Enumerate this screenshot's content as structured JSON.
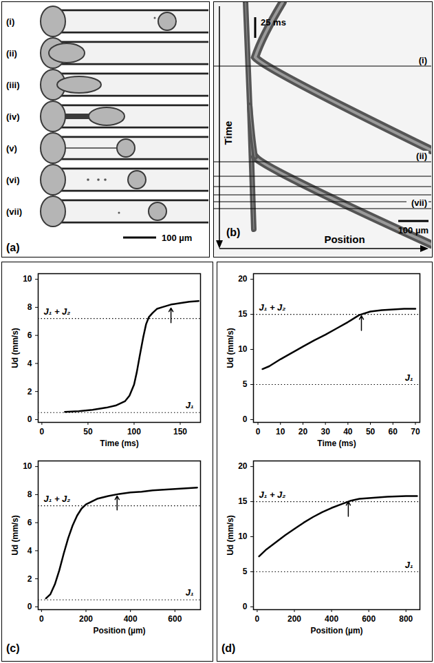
{
  "panels": {
    "a": {
      "label": "(a)",
      "rows": [
        "(i)",
        "(ii)",
        "(iii)",
        "(iv)",
        "(v)",
        "(vi)",
        "(vii)"
      ],
      "scale_bar": "100 µm"
    },
    "b": {
      "label": "(b)",
      "time_bar": "25 ms",
      "y_label": "Time",
      "x_label": "Position",
      "scale_bar": "100 µm",
      "marked_frames": [
        "(i)",
        "(ii)",
        "(vii)"
      ]
    },
    "c": {
      "label": "(c)"
    },
    "d": {
      "label": "(d)"
    }
  },
  "chart_data": [
    {
      "type": "line",
      "panel": "c",
      "x_label": "Time (ms)",
      "y_label": "Ud (mm/s)",
      "color": "#000000",
      "x": [
        25,
        40,
        55,
        70,
        80,
        90,
        95,
        100,
        103,
        106,
        110,
        113,
        116,
        120,
        125,
        130,
        140,
        150,
        160,
        170
      ],
      "values": [
        0.55,
        0.6,
        0.7,
        0.85,
        1.0,
        1.3,
        1.7,
        2.5,
        3.4,
        4.5,
        5.9,
        6.8,
        7.3,
        7.6,
        7.9,
        8.0,
        8.2,
        8.3,
        8.4,
        8.45
      ],
      "xlim": [
        -4,
        172
      ],
      "xticks": [
        0,
        50,
        100,
        150
      ],
      "ylim": [
        -0.2,
        10.4
      ],
      "yticks": [
        0,
        2,
        4,
        6,
        8,
        10
      ],
      "reference_lines": [
        {
          "value": 7.2,
          "label": "J₁ + J₂"
        },
        {
          "value": 0.5,
          "label": "J₁"
        }
      ],
      "arrow": {
        "x": 140,
        "y1": 6.9,
        "y2": 7.95
      }
    },
    {
      "type": "line",
      "panel": "c",
      "x_label": "Position (µm)",
      "y_label": "Ud (mm/s)",
      "color": "#000000",
      "x": [
        20,
        40,
        60,
        80,
        100,
        120,
        140,
        160,
        180,
        200,
        250,
        300,
        350,
        400,
        450,
        500,
        600,
        700
      ],
      "values": [
        0.6,
        0.9,
        1.6,
        2.6,
        3.8,
        4.9,
        5.8,
        6.5,
        7.0,
        7.3,
        7.7,
        7.9,
        8.05,
        8.15,
        8.2,
        8.3,
        8.4,
        8.5
      ],
      "xlim": [
        -15,
        715
      ],
      "xticks": [
        0,
        200,
        400,
        600
      ],
      "ylim": [
        -0.2,
        10.4
      ],
      "yticks": [
        0,
        2,
        4,
        6,
        8,
        10
      ],
      "reference_lines": [
        {
          "value": 7.2,
          "label": "J₁ + J₂"
        },
        {
          "value": 0.5,
          "label": "J₁"
        }
      ],
      "arrow": {
        "x": 340,
        "y1": 6.9,
        "y2": 7.9
      }
    },
    {
      "type": "line",
      "panel": "d",
      "x_label": "Time (ms)",
      "y_label": "Ud (mm/s)",
      "color": "#000000",
      "x": [
        2,
        5,
        10,
        15,
        20,
        25,
        30,
        35,
        40,
        45,
        50,
        55,
        60,
        65,
        70
      ],
      "values": [
        7.2,
        7.6,
        8.6,
        9.5,
        10.4,
        11.3,
        12.1,
        13.0,
        13.9,
        14.9,
        15.4,
        15.6,
        15.7,
        15.8,
        15.8
      ],
      "xlim": [
        -2,
        72
      ],
      "xticks": [
        0,
        10,
        20,
        30,
        40,
        50,
        60,
        70
      ],
      "ylim": [
        -0.4,
        20.8
      ],
      "yticks": [
        0,
        5,
        10,
        15,
        20
      ],
      "reference_lines": [
        {
          "value": 15,
          "label": "J₁ + J₂"
        },
        {
          "value": 5,
          "label": "J₁"
        }
      ],
      "arrow": {
        "x": 46,
        "y1": 12.7,
        "y2": 14.8
      }
    },
    {
      "type": "line",
      "panel": "d",
      "x_label": "Position (µm)",
      "y_label": "Ud (mm/s)",
      "color": "#000000",
      "x": [
        10,
        50,
        100,
        150,
        200,
        250,
        300,
        350,
        400,
        450,
        500,
        550,
        600,
        700,
        800,
        860
      ],
      "values": [
        7.2,
        8.2,
        9.2,
        10.2,
        11.1,
        12.0,
        12.8,
        13.5,
        14.1,
        14.6,
        15.1,
        15.4,
        15.5,
        15.7,
        15.8,
        15.8
      ],
      "xlim": [
        -20,
        875
      ],
      "xticks": [
        0,
        200,
        400,
        600,
        800
      ],
      "ylim": [
        -0.4,
        20.8
      ],
      "yticks": [
        0,
        5,
        10,
        15,
        20
      ],
      "reference_lines": [
        {
          "value": 15,
          "label": "J₁ + J₂"
        },
        {
          "value": 5,
          "label": "J₁"
        }
      ],
      "arrow": {
        "x": 490,
        "y1": 12.9,
        "y2": 15.0
      }
    }
  ]
}
